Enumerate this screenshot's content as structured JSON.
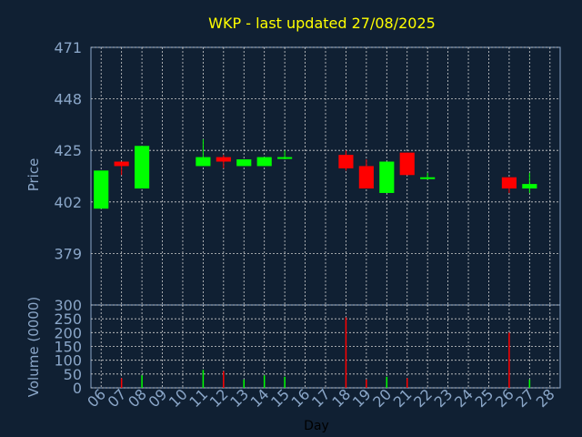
{
  "chart_data": {
    "type": "candlestick",
    "title": "WKP - last updated 27/08/2025",
    "xlabel": "Day",
    "x_ticks": [
      "06",
      "07",
      "08",
      "09",
      "10",
      "11",
      "12",
      "13",
      "14",
      "15",
      "16",
      "17",
      "18",
      "19",
      "20",
      "21",
      "22",
      "23",
      "24",
      "25",
      "26",
      "27",
      "28"
    ],
    "price_panel": {
      "ylabel": "Price",
      "ylim": [
        356,
        471
      ],
      "y_ticks": [
        471,
        448,
        425,
        402,
        379
      ],
      "candles": [
        {
          "day": "06",
          "open": 399,
          "high": 416,
          "low": 399,
          "close": 416,
          "direction": "up"
        },
        {
          "day": "07",
          "open": 420,
          "high": 420,
          "low": 414,
          "close": 418,
          "direction": "down"
        },
        {
          "day": "08",
          "open": 408,
          "high": 427,
          "low": 408,
          "close": 427,
          "direction": "up"
        },
        {
          "day": "11",
          "open": 418,
          "high": 430,
          "low": 418,
          "close": 422,
          "direction": "up"
        },
        {
          "day": "12",
          "open": 422,
          "high": 423,
          "low": 417,
          "close": 420,
          "direction": "down"
        },
        {
          "day": "13",
          "open": 418,
          "high": 421,
          "low": 418,
          "close": 421,
          "direction": "up"
        },
        {
          "day": "14",
          "open": 418,
          "high": 422,
          "low": 418,
          "close": 422,
          "direction": "up"
        },
        {
          "day": "15",
          "open": 422,
          "high": 425,
          "low": 421,
          "close": 422,
          "direction": "up"
        },
        {
          "day": "18",
          "open": 423,
          "high": 425,
          "low": 416,
          "close": 417,
          "direction": "down"
        },
        {
          "day": "19",
          "open": 418,
          "high": 421,
          "low": 408,
          "close": 408,
          "direction": "down"
        },
        {
          "day": "20",
          "open": 406,
          "high": 420,
          "low": 406,
          "close": 420,
          "direction": "up"
        },
        {
          "day": "21",
          "open": 424,
          "high": 424,
          "low": 414,
          "close": 414,
          "direction": "down"
        },
        {
          "day": "22",
          "open": 413,
          "high": 415,
          "low": 412,
          "close": 413,
          "direction": "up"
        },
        {
          "day": "26",
          "open": 413,
          "high": 413,
          "low": 406,
          "close": 408,
          "direction": "down"
        },
        {
          "day": "27",
          "open": 408,
          "high": 415,
          "low": 406,
          "close": 410,
          "direction": "up"
        }
      ]
    },
    "volume_panel": {
      "ylabel": "Volume (0000)",
      "ylim": [
        0,
        300
      ],
      "y_ticks": [
        300,
        250,
        200,
        150,
        100,
        50,
        0
      ],
      "bars": [
        {
          "day": "07",
          "value": 35,
          "direction": "down"
        },
        {
          "day": "08",
          "value": 45,
          "direction": "up"
        },
        {
          "day": "11",
          "value": 65,
          "direction": "up"
        },
        {
          "day": "12",
          "value": 60,
          "direction": "down"
        },
        {
          "day": "13",
          "value": 30,
          "direction": "up"
        },
        {
          "day": "14",
          "value": 45,
          "direction": "up"
        },
        {
          "day": "15",
          "value": 40,
          "direction": "up"
        },
        {
          "day": "18",
          "value": 255,
          "direction": "down"
        },
        {
          "day": "19",
          "value": 30,
          "direction": "down"
        },
        {
          "day": "20",
          "value": 40,
          "direction": "up"
        },
        {
          "day": "21",
          "value": 35,
          "direction": "down"
        },
        {
          "day": "26",
          "value": 200,
          "direction": "down"
        },
        {
          "day": "27",
          "value": 30,
          "direction": "up"
        }
      ]
    },
    "colors": {
      "background": "#102033",
      "up": "#00ff00",
      "down": "#ff0000",
      "axis_text": "#8aa6c8",
      "title": "#ffff00",
      "grid": "#d0d0d0"
    },
    "grid": true
  }
}
